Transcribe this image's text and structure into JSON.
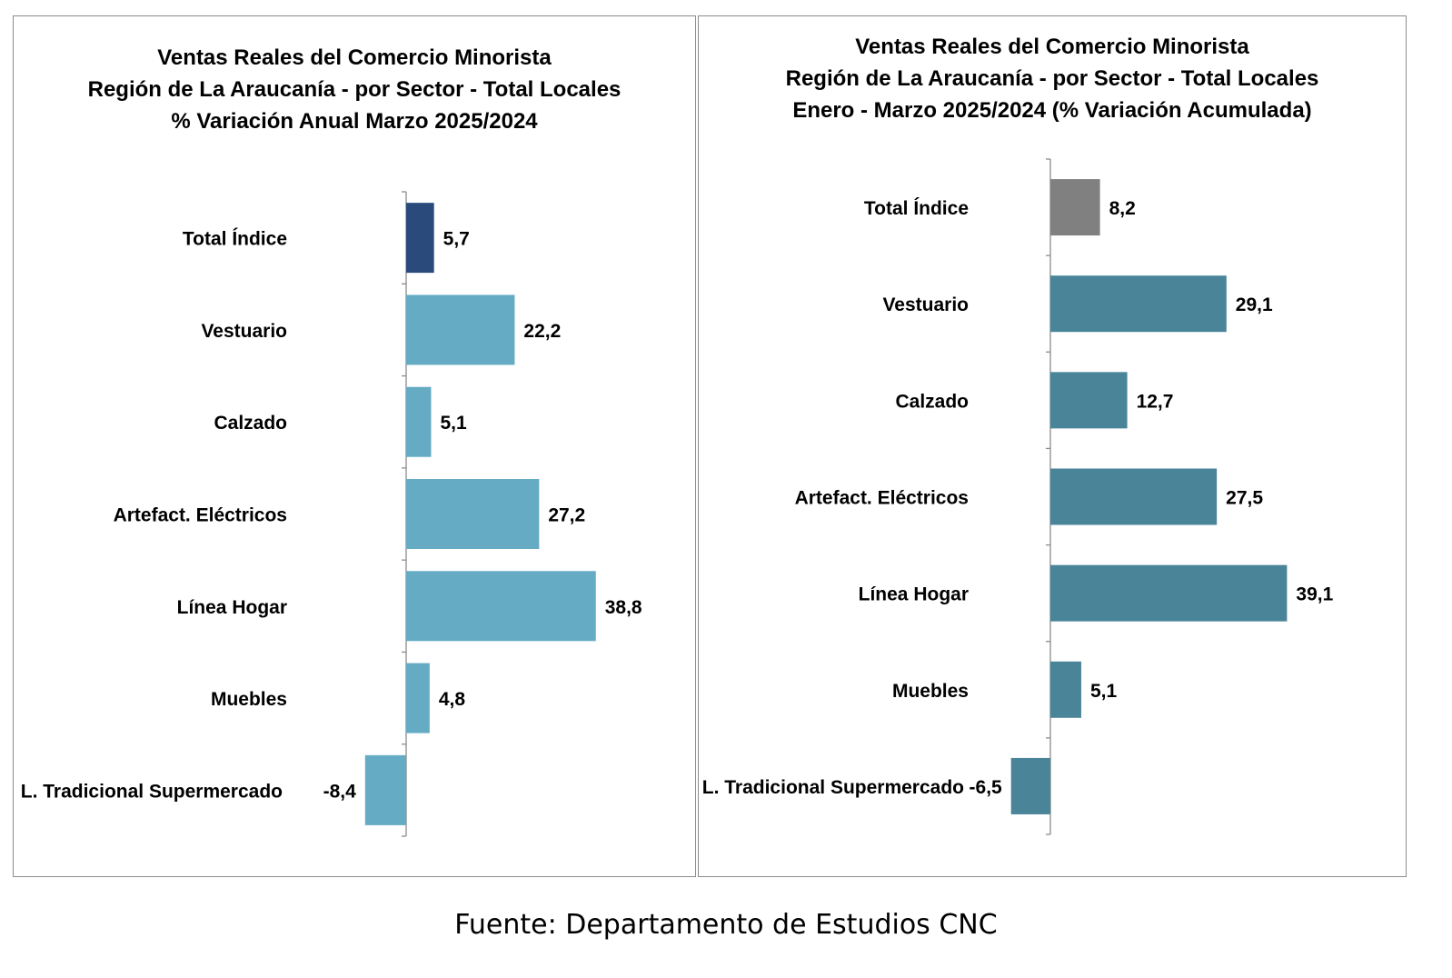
{
  "chart_data": [
    {
      "type": "bar",
      "orientation": "horizontal",
      "title": [
        "Ventas Reales del Comercio Minorista",
        "Región de La Araucanía - por Sector - Total Locales",
        "% Variación Anual Marzo 2025/2024"
      ],
      "categories": [
        "Total Índice",
        "Vestuario",
        "Calzado",
        "Artefact. Eléctricos",
        "Línea Hogar",
        "Muebles",
        "L. Tradicional Supermercado"
      ],
      "values": [
        5.7,
        22.2,
        5.1,
        27.2,
        38.8,
        4.8,
        -8.4
      ],
      "value_labels": [
        "5,7",
        "22,2",
        "5,1",
        "27,2",
        "38,8",
        "4,8",
        "-8,4"
      ],
      "bar_colors": [
        "#2a4a7c",
        "#65abc4",
        "#65abc4",
        "#65abc4",
        "#65abc4",
        "#65abc4",
        "#65abc4"
      ],
      "xlabel": "",
      "ylabel": "",
      "xlim": [
        -10,
        40
      ],
      "grid": false,
      "legend": "none"
    },
    {
      "type": "bar",
      "orientation": "horizontal",
      "title": [
        "Ventas Reales del Comercio Minorista",
        "Región de La Araucanía - por Sector - Total Locales",
        "Enero - Marzo 2025/2024 (% Variación Acumulada)"
      ],
      "categories": [
        "Total Índice",
        "Vestuario",
        "Calzado",
        "Artefact. Eléctricos",
        "Línea Hogar",
        "Muebles",
        "L. Tradicional Supermercado"
      ],
      "values": [
        8.2,
        29.1,
        12.7,
        27.5,
        39.1,
        5.1,
        -6.5
      ],
      "value_labels": [
        "8,2",
        "29,1",
        "12,7",
        "27,5",
        "39,1",
        "5,1",
        "-6,5"
      ],
      "bar_colors": [
        "#808080",
        "#4a8499",
        "#4a8499",
        "#4a8499",
        "#4a8499",
        "#4a8499",
        "#4a8499"
      ],
      "xlabel": "",
      "ylabel": "",
      "xlim": [
        -10,
        40
      ],
      "grid": false,
      "legend": "none"
    }
  ],
  "footer": {
    "source": "Fuente: Departamento de Estudios CNC"
  }
}
